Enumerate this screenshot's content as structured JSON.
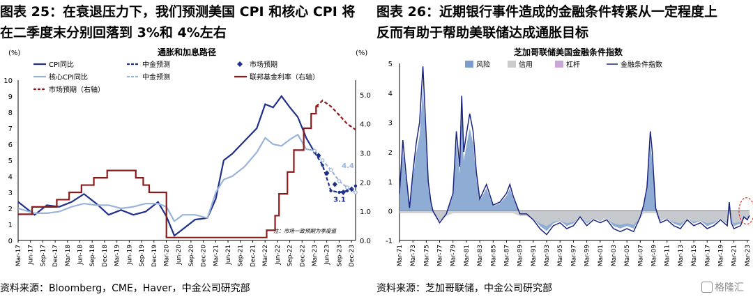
{
  "left": {
    "title": "图表 25：在衰退压力下，我们预测美国 CPI 和核心 CPI 将\n在二季度末分别回落到 3%和 4%左右",
    "source": "资料来源：Bloomberg，CME，Haver，中金公司研究部"
  },
  "right": {
    "title": "图表 26：近期银行事件造成的金融条件转紧从一定程度上\n反而有助于帮助美联储达成通胀目标",
    "source": "资料来源：芝加哥联储，中金公司研究部"
  },
  "watermark": "格隆汇",
  "chart_data": [
    {
      "type": "line",
      "title": "通胀和加息路径",
      "ylabel_left": "(%)",
      "ylabel_right": "(%)",
      "ylim": [
        0,
        10
      ],
      "ylim_right": [
        0,
        5.5
      ],
      "yticks": [
        0,
        1,
        2,
        3,
        4,
        5,
        6,
        7,
        8,
        9,
        10
      ],
      "yticks_right": [
        "0.0",
        "1.0",
        "2.0",
        "3.0",
        "4.0",
        "5.0"
      ],
      "x_start": 2017.167,
      "x_end": 2024.0,
      "xticks": [
        "Mar-17",
        "Jun-17",
        "Sep-17",
        "Dec-17",
        "Mar-18",
        "Jun-18",
        "Sep-18",
        "Dec-18",
        "Mar-19",
        "Jun-19",
        "Sep-19",
        "Dec-19",
        "Mar-20",
        "Jun-20",
        "Sep-20",
        "Dec-20",
        "Mar-21",
        "Jun-21",
        "Sep-21",
        "Dec-21",
        "Mar-22",
        "Jun-22",
        "Sep-22",
        "Dec-22",
        "Mar-23",
        "Jun-23",
        "Sep-23",
        "Dec-23"
      ],
      "series": [
        {
          "name": "CPI同比",
          "axis": "left",
          "style": "solid",
          "color": "#1f2f8c",
          "x": [
            2017.17,
            2017.5,
            2017.75,
            2018.0,
            2018.25,
            2018.5,
            2018.75,
            2019.0,
            2019.25,
            2019.5,
            2019.75,
            2020.0,
            2020.17,
            2020.33,
            2020.5,
            2020.75,
            2021.0,
            2021.17,
            2021.33,
            2021.5,
            2021.75,
            2022.0,
            2022.17,
            2022.33,
            2022.5,
            2022.67,
            2022.83,
            2023.0,
            2023.17
          ],
          "values": [
            2.4,
            1.6,
            2.2,
            2.1,
            2.4,
            2.9,
            2.3,
            1.6,
            1.9,
            1.6,
            1.8,
            2.4,
            1.5,
            0.3,
            0.7,
            1.3,
            1.4,
            2.6,
            5.0,
            5.4,
            6.2,
            7.0,
            8.5,
            8.3,
            9.0,
            8.3,
            7.7,
            6.4,
            5.5
          ]
        },
        {
          "name": "中金预测",
          "axis": "left",
          "style": "dash-marker",
          "color": "#1f2f8c",
          "x": [
            2023.17,
            2023.33,
            2023.5,
            2023.67,
            2023.83,
            2024.0
          ],
          "values": [
            5.5,
            4.7,
            3.1,
            3.0,
            3.1,
            3.4
          ],
          "label": "3.1"
        },
        {
          "name": "市场预期",
          "axis": "left",
          "style": "diamond",
          "color": "#1f2f8c",
          "x": [
            2023.25,
            2023.42,
            2023.58,
            2023.75,
            2023.92
          ],
          "values": [
            5.3,
            4.2,
            3.5,
            3.0,
            3.2
          ]
        },
        {
          "name": "核心CPI同比",
          "axis": "left",
          "style": "solid",
          "color": "#9ab3d9",
          "x": [
            2017.17,
            2017.5,
            2017.75,
            2018.0,
            2018.25,
            2018.5,
            2018.75,
            2019.0,
            2019.25,
            2019.5,
            2019.75,
            2020.0,
            2020.17,
            2020.33,
            2020.5,
            2020.75,
            2021.0,
            2021.17,
            2021.33,
            2021.5,
            2021.75,
            2022.0,
            2022.17,
            2022.33,
            2022.5,
            2022.67,
            2022.83,
            2023.0,
            2023.17
          ],
          "values": [
            2.0,
            1.7,
            1.7,
            1.8,
            2.1,
            2.3,
            2.2,
            2.2,
            2.0,
            2.1,
            2.3,
            2.3,
            2.1,
            1.2,
            1.6,
            1.6,
            1.4,
            3.0,
            3.8,
            4.0,
            4.6,
            5.5,
            6.4,
            6.0,
            5.9,
            6.3,
            6.6,
            5.7,
            5.6
          ]
        },
        {
          "name": "中金预测(核心)",
          "axis": "left",
          "style": "dash-marker-light",
          "color": "#9ab3d9",
          "x": [
            2023.17,
            2023.33,
            2023.5,
            2023.67,
            2023.83,
            2024.0
          ],
          "values": [
            5.6,
            5.0,
            4.4,
            3.7,
            3.3,
            3.0
          ],
          "label": "4.4"
        },
        {
          "name": "联邦基金利率（右轴）",
          "axis": "right",
          "style": "step",
          "color": "#8b1a1a",
          "x": [
            2017.17,
            2017.45,
            2017.95,
            2018.2,
            2018.45,
            2018.7,
            2018.97,
            2019.55,
            2019.7,
            2019.82,
            2020.17,
            2022.2,
            2022.37,
            2022.45,
            2022.62,
            2022.75,
            2022.95,
            2023.1,
            2023.2
          ],
          "values": [
            0.9,
            1.15,
            1.4,
            1.65,
            1.9,
            2.15,
            2.4,
            2.15,
            1.9,
            1.65,
            0.1,
            0.35,
            0.85,
            1.6,
            2.35,
            3.1,
            3.85,
            4.35,
            4.6
          ]
        },
        {
          "name": "市场预期（右轴）",
          "axis": "right",
          "style": "dashed",
          "color": "#8b1a1a",
          "x": [
            2023.2,
            2023.33,
            2023.5,
            2023.67,
            2023.83,
            2024.0
          ],
          "values": [
            4.6,
            4.8,
            4.6,
            4.3,
            4.0,
            3.8
          ]
        }
      ],
      "legend": [
        "CPI同比",
        "中金预测",
        "市场预期",
        "核心CPI同比",
        "中金预测",
        "联邦基金利率（右轴）",
        "市场预期（右轴）"
      ],
      "note": "注：市场一致预期为季度值"
    },
    {
      "type": "area",
      "title": "芝加哥联储美国金融条件指数",
      "ylim": [
        -1,
        5
      ],
      "yticks": [
        "5",
        "4",
        "3",
        "2",
        "1",
        "0",
        "-1"
      ],
      "x_start": 1971.0,
      "x_end": 2023.33,
      "xticks": [
        "Mar-71",
        "Mar-73",
        "Mar-75",
        "Mar-77",
        "Mar-79",
        "Mar-81",
        "Mar-83",
        "Mar-85",
        "Mar-87",
        "Mar-89",
        "Mar-91",
        "Mar-93",
        "Mar-95",
        "Mar-97",
        "Mar-99",
        "Mar-01",
        "Mar-03",
        "Mar-05",
        "Mar-07",
        "Mar-09",
        "Mar-11",
        "Mar-13",
        "Mar-15",
        "Mar-17",
        "Mar-19",
        "Mar-21",
        "Mar-23"
      ],
      "legend": [
        "风险",
        "信用",
        "杠杆",
        "金融条件指数"
      ],
      "colors": {
        "risk": "#7b9dcc",
        "credit": "#cccccc",
        "leverage": "#c9a6d6",
        "index": "#1a237e"
      },
      "series": [
        {
          "name": "金融条件指数",
          "x": [
            1971,
            1971.5,
            1972,
            1972.5,
            1973,
            1973.5,
            1974,
            1974.5,
            1975,
            1975.3,
            1975.7,
            1976,
            1977,
            1978,
            1979,
            1979.5,
            1980,
            1980.3,
            1980.6,
            1981,
            1981.5,
            1982,
            1982.5,
            1983,
            1984,
            1985,
            1986,
            1987,
            1987.5,
            1988,
            1989,
            1990,
            1991,
            1992,
            1993,
            1994,
            1995,
            1996,
            1997,
            1998,
            1999,
            2000,
            2001,
            2002,
            2003,
            2004,
            2005,
            2006,
            2007,
            2007.5,
            2008,
            2008.5,
            2008.8,
            2009,
            2009.3,
            2009.7,
            2010,
            2011,
            2012,
            2013,
            2014,
            2015,
            2016,
            2017,
            2018,
            2019,
            2020,
            2020.3,
            2020.6,
            2021,
            2022,
            2022.5,
            2023,
            2023.33
          ],
          "values": [
            0.6,
            2.4,
            1.2,
            0.1,
            1.3,
            2.3,
            3.0,
            4.9,
            2.5,
            1.0,
            0.3,
            0.0,
            -0.4,
            -0.1,
            0.6,
            2.7,
            1.5,
            3.9,
            2.0,
            2.6,
            3.3,
            2.7,
            1.3,
            0.4,
            0.9,
            0.2,
            0.3,
            0.6,
            0.9,
            0.5,
            -0.1,
            -0.1,
            -0.3,
            -0.6,
            -0.8,
            -0.5,
            -0.4,
            -0.6,
            -0.5,
            -0.2,
            -0.5,
            -0.3,
            -0.4,
            -0.3,
            -0.6,
            -0.7,
            -0.6,
            -0.7,
            -0.2,
            0.2,
            0.8,
            2.7,
            2.0,
            1.2,
            0.1,
            -0.2,
            -0.4,
            -0.3,
            -0.5,
            -0.6,
            -0.3,
            -0.5,
            -0.4,
            -0.6,
            -0.5,
            -0.3,
            -0.5,
            0.3,
            -0.4,
            -0.6,
            -0.5,
            -0.2,
            -0.3,
            -0.15
          ]
        }
      ]
    }
  ]
}
